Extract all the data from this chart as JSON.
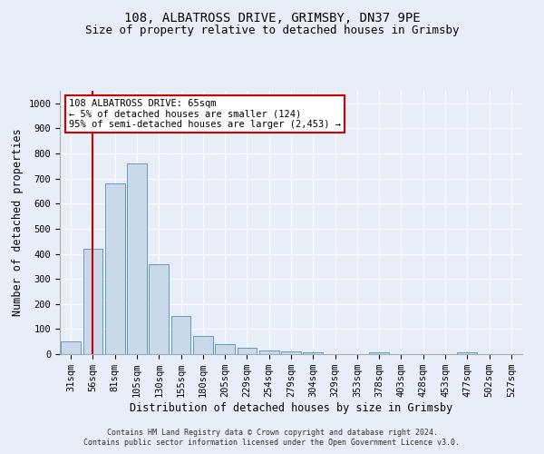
{
  "title": "108, ALBATROSS DRIVE, GRIMSBY, DN37 9PE",
  "subtitle": "Size of property relative to detached houses in Grimsby",
  "xlabel": "Distribution of detached houses by size in Grimsby",
  "ylabel": "Number of detached properties",
  "footer_line1": "Contains HM Land Registry data © Crown copyright and database right 2024.",
  "footer_line2": "Contains public sector information licensed under the Open Government Licence v3.0.",
  "annotation_title": "108 ALBATROSS DRIVE: 65sqm",
  "annotation_line2": "← 5% of detached houses are smaller (124)",
  "annotation_line3": "95% of semi-detached houses are larger (2,453) →",
  "bar_color": "#c9d9ea",
  "bar_edge_color": "#6699bb",
  "red_line_color": "#cc0000",
  "red_line_x": 1,
  "categories": [
    "31sqm",
    "56sqm",
    "81sqm",
    "105sqm",
    "130sqm",
    "155sqm",
    "180sqm",
    "205sqm",
    "229sqm",
    "254sqm",
    "279sqm",
    "304sqm",
    "329sqm",
    "353sqm",
    "378sqm",
    "403sqm",
    "428sqm",
    "453sqm",
    "477sqm",
    "502sqm",
    "527sqm"
  ],
  "values": [
    50,
    420,
    680,
    760,
    360,
    152,
    72,
    40,
    25,
    15,
    10,
    8,
    0,
    0,
    8,
    0,
    0,
    0,
    8,
    0,
    0
  ],
  "ylim": [
    0,
    1050
  ],
  "yticks": [
    0,
    100,
    200,
    300,
    400,
    500,
    600,
    700,
    800,
    900,
    1000
  ],
  "background_color": "#e8eef8",
  "title_fontsize": 10,
  "subtitle_fontsize": 9,
  "axis_label_fontsize": 8.5,
  "tick_fontsize": 7.5,
  "footer_fontsize": 6,
  "annotation_fontsize": 7.5,
  "annotation_border_color": "#cc0000",
  "grid_color": "#ffffff"
}
